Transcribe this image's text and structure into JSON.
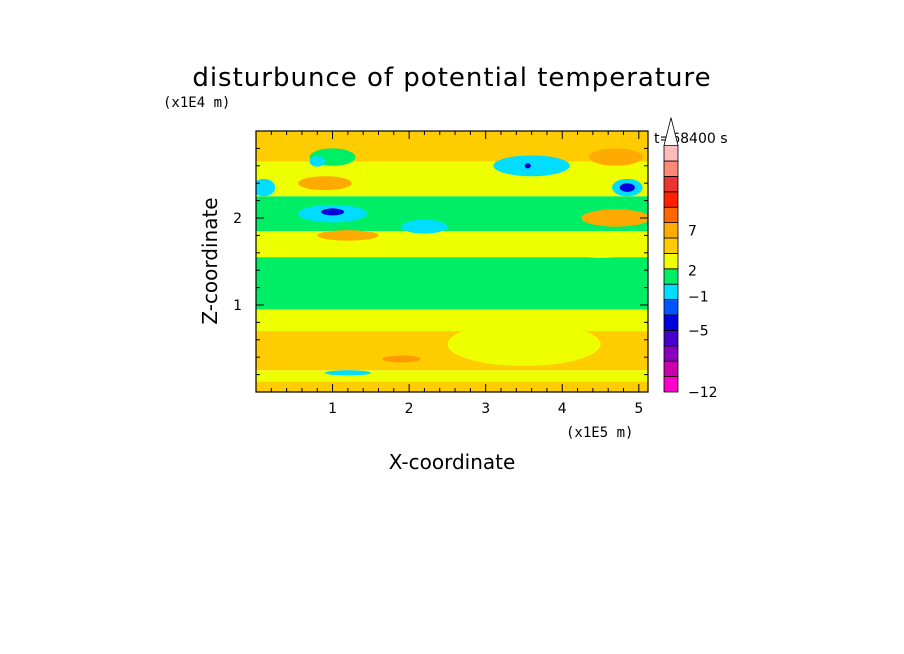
{
  "chart_data": {
    "type": "heatmap",
    "title": "disturbunce of potential temperature",
    "xlabel": "X-coordinate",
    "ylabel": "Z-coordinate",
    "x_unit": "(x1E5 m)",
    "y_unit": "(x1E4 m)",
    "time_label": "t=68400 s",
    "xlim": [
      0,
      5.12
    ],
    "ylim": [
      0,
      3.0
    ],
    "x_ticks": [
      "1",
      "2",
      "3",
      "4",
      "5"
    ],
    "y_ticks": [
      "1",
      "2"
    ],
    "colorbar": {
      "levels": [
        {
          "color": "#ff00cc"
        },
        {
          "color": "#cc00aa"
        },
        {
          "color": "#8800bb"
        },
        {
          "color": "#4400cc"
        },
        {
          "color": "#0000dd"
        },
        {
          "color": "#0055ff"
        },
        {
          "color": "#00ddff"
        },
        {
          "color": "#00ee66"
        },
        {
          "color": "#eeff00"
        },
        {
          "color": "#ffcc00"
        },
        {
          "color": "#ffaa00"
        },
        {
          "color": "#ff6600"
        },
        {
          "color": "#ff2200"
        },
        {
          "color": "#ee3333"
        },
        {
          "color": "#ff8877"
        },
        {
          "color": "#ffbbbb"
        },
        {
          "color": "#ffffff"
        }
      ],
      "labels": [
        "-12",
        "-5",
        "-1",
        "2",
        "7"
      ],
      "extend": "max"
    },
    "bands": [
      {
        "z_min": 0.0,
        "z_max": 0.12,
        "value": 2,
        "color": "#ffcc00"
      },
      {
        "z_min": 0.12,
        "z_max": 0.25,
        "value": 0,
        "color": "#eeff00"
      },
      {
        "z_min": 0.25,
        "z_max": 0.7,
        "value": 3,
        "color": "#ffcc00"
      },
      {
        "z_min": 0.7,
        "z_max": 0.95,
        "value": 0,
        "color": "#eeff00"
      },
      {
        "z_min": 0.95,
        "z_max": 1.55,
        "value": -1,
        "color": "#00ee66"
      },
      {
        "z_min": 1.55,
        "z_max": 1.85,
        "value": 0,
        "color": "#eeff00"
      },
      {
        "z_min": 1.85,
        "z_max": 2.25,
        "value": -1,
        "color": "#00ee66"
      },
      {
        "z_min": 2.25,
        "z_max": 2.65,
        "value": 0,
        "color": "#eeff00"
      },
      {
        "z_min": 2.65,
        "z_max": 3.0,
        "value": 2,
        "color": "#ffcc00"
      }
    ],
    "features": [
      {
        "x": 0.9,
        "z": 2.4,
        "rx": 0.35,
        "rz": 0.08,
        "value": 3,
        "color": "#ffaa00"
      },
      {
        "x": 0.1,
        "z": 2.35,
        "rx": 0.15,
        "rz": 0.1,
        "value": -1,
        "color": "#00ddff"
      },
      {
        "x": 1.0,
        "z": 2.05,
        "rx": 0.45,
        "rz": 0.1,
        "value": -1,
        "color": "#00ddff"
      },
      {
        "x": 1.0,
        "z": 2.07,
        "rx": 0.15,
        "rz": 0.04,
        "value": -5,
        "color": "#0000dd"
      },
      {
        "x": 1.0,
        "z": 2.7,
        "rx": 0.3,
        "rz": 0.1,
        "value": -1,
        "color": "#00ee66"
      },
      {
        "x": 0.8,
        "z": 2.65,
        "rx": 0.1,
        "rz": 0.06,
        "value": -1,
        "color": "#00ddff"
      },
      {
        "x": 3.6,
        "z": 2.6,
        "rx": 0.5,
        "rz": 0.12,
        "value": -1,
        "color": "#00ddff"
      },
      {
        "x": 3.55,
        "z": 2.6,
        "rx": 0.04,
        "rz": 0.03,
        "value": -5,
        "color": "#0000dd"
      },
      {
        "x": 4.85,
        "z": 2.35,
        "rx": 0.2,
        "rz": 0.1,
        "value": -1,
        "color": "#00ddff"
      },
      {
        "x": 4.85,
        "z": 2.35,
        "rx": 0.1,
        "rz": 0.05,
        "value": -5,
        "color": "#0000dd"
      },
      {
        "x": 4.7,
        "z": 2.0,
        "rx": 0.45,
        "rz": 0.1,
        "value": 3,
        "color": "#ffaa00"
      },
      {
        "x": 4.7,
        "z": 2.7,
        "rx": 0.35,
        "rz": 0.1,
        "value": 3,
        "color": "#ffaa00"
      },
      {
        "x": 2.2,
        "z": 1.9,
        "rx": 0.3,
        "rz": 0.08,
        "value": -1,
        "color": "#00ddff"
      },
      {
        "x": 1.2,
        "z": 1.8,
        "rx": 0.4,
        "rz": 0.06,
        "value": 3,
        "color": "#ffaa00"
      },
      {
        "x": 4.5,
        "z": 1.6,
        "rx": 0.3,
        "rz": 0.06,
        "value": 0,
        "color": "#eeff00"
      },
      {
        "x": 3.5,
        "z": 0.55,
        "rx": 1.0,
        "rz": 0.25,
        "value": 0,
        "color": "#eeff00"
      },
      {
        "x": 1.9,
        "z": 0.38,
        "rx": 0.25,
        "rz": 0.04,
        "value": 4,
        "color": "#ff9900"
      },
      {
        "x": 1.2,
        "z": 0.22,
        "rx": 0.3,
        "rz": 0.03,
        "value": -1,
        "color": "#00ddff"
      }
    ]
  }
}
